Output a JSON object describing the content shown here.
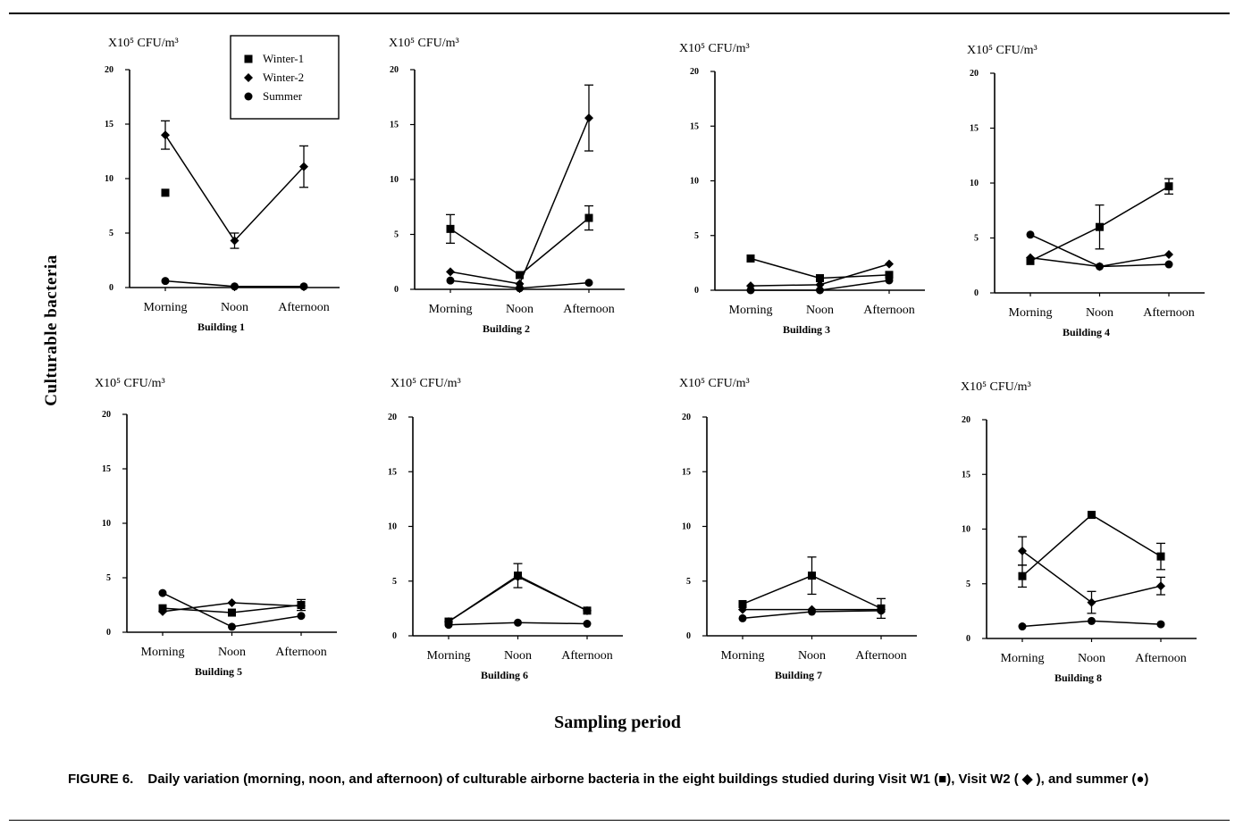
{
  "figure": {
    "y_axis_label": "Culturable bacteria",
    "x_axis_label": "Sampling period",
    "caption_label": "FIGURE 6.",
    "caption_text": "Daily variation (morning, noon, and afternoon) of culturable airborne bacteria in the eight buildings studied during Visit W1 (■), Visit W2 ( ◆ ), and summer (●)"
  },
  "legend": {
    "entries": [
      {
        "name": "Winter-1",
        "marker": "square"
      },
      {
        "name": "Winter-2",
        "marker": "diamond"
      },
      {
        "name": "Summer",
        "marker": "circle"
      }
    ]
  },
  "chart_data": [
    {
      "type": "line",
      "title": "Building 1",
      "unit_label": "X10⁵ CFU/m³",
      "categories": [
        "Morning",
        "Noon",
        "Afternoon"
      ],
      "ylim": [
        0,
        20
      ],
      "yticks": [
        0,
        5,
        10,
        15,
        20
      ],
      "series": [
        {
          "name": "Winter-1",
          "values": [
            8.7,
            null,
            null
          ]
        },
        {
          "name": "Winter-2",
          "values": [
            14.0,
            4.3,
            11.1
          ],
          "errors": [
            1.3,
            0.7,
            1.9
          ]
        },
        {
          "name": "Summer",
          "values": [
            0.6,
            0.1,
            0.1
          ]
        }
      ]
    },
    {
      "type": "line",
      "title": "Building 2",
      "unit_label": "X10⁵ CFU/m³",
      "categories": [
        "Morning",
        "Noon",
        "Afternoon"
      ],
      "ylim": [
        0,
        20
      ],
      "yticks": [
        0,
        5,
        10,
        15,
        20
      ],
      "series": [
        {
          "name": "Winter-1",
          "values": [
            5.5,
            1.3,
            6.5
          ],
          "errors": [
            1.3,
            0.0,
            1.1
          ]
        },
        {
          "name": "Winter-2",
          "values": [
            1.6,
            0.5,
            15.6
          ],
          "errors": [
            0,
            0,
            3.0
          ]
        },
        {
          "name": "Summer",
          "values": [
            0.8,
            0.1,
            0.6
          ]
        }
      ]
    },
    {
      "type": "line",
      "title": "Building 3",
      "unit_label": "X10⁵ CFU/m³",
      "categories": [
        "Morning",
        "Noon",
        "Afternoon"
      ],
      "ylim": [
        0,
        20
      ],
      "yticks": [
        0,
        5,
        10,
        15,
        20
      ],
      "series": [
        {
          "name": "Winter-1",
          "values": [
            2.9,
            1.1,
            1.4
          ]
        },
        {
          "name": "Winter-2",
          "values": [
            0.4,
            0.5,
            2.4
          ]
        },
        {
          "name": "Summer",
          "values": [
            0.0,
            0.0,
            0.9
          ]
        }
      ]
    },
    {
      "type": "line",
      "title": "Building 4",
      "unit_label": "X10⁵ CFU/m³",
      "categories": [
        "Morning",
        "Noon",
        "Afternoon"
      ],
      "ylim": [
        0,
        20
      ],
      "yticks": [
        0,
        5,
        10,
        15,
        20
      ],
      "series": [
        {
          "name": "Winter-1",
          "values": [
            2.9,
            6.0,
            9.7
          ],
          "errors": [
            0,
            2.0,
            0.7
          ]
        },
        {
          "name": "Winter-2",
          "values": [
            3.2,
            2.4,
            3.5
          ]
        },
        {
          "name": "Summer",
          "values": [
            5.3,
            2.4,
            2.6
          ]
        }
      ]
    },
    {
      "type": "line",
      "title": "Building 5",
      "unit_label": "X10⁵ CFU/m³",
      "categories": [
        "Morning",
        "Noon",
        "Afternoon"
      ],
      "ylim": [
        0,
        20
      ],
      "yticks": [
        0,
        5,
        10,
        15,
        20
      ],
      "series": [
        {
          "name": "Winter-1",
          "values": [
            2.2,
            1.8,
            2.5
          ],
          "errors": [
            0,
            0,
            0.5
          ]
        },
        {
          "name": "Winter-2",
          "values": [
            1.9,
            2.7,
            2.4
          ]
        },
        {
          "name": "Summer",
          "values": [
            3.6,
            0.5,
            1.5
          ]
        }
      ]
    },
    {
      "type": "line",
      "title": "Building 6",
      "unit_label": "X10⁵ CFU/m³",
      "categories": [
        "Morning",
        "Noon",
        "Afternoon"
      ],
      "ylim": [
        0,
        20
      ],
      "yticks": [
        0,
        5,
        10,
        15,
        20
      ],
      "series": [
        {
          "name": "Winter-1",
          "values": [
            1.3,
            5.5,
            2.3
          ],
          "errors": [
            0,
            1.1,
            0
          ]
        },
        {
          "name": "Winter-2",
          "values": [
            1.3,
            5.4,
            2.3
          ]
        },
        {
          "name": "Summer",
          "values": [
            1.0,
            1.2,
            1.1
          ]
        }
      ]
    },
    {
      "type": "line",
      "title": "Building 7",
      "unit_label": "X10⁵ CFU/m³",
      "categories": [
        "Morning",
        "Noon",
        "Afternoon"
      ],
      "ylim": [
        0,
        20
      ],
      "yticks": [
        0,
        5,
        10,
        15,
        20
      ],
      "series": [
        {
          "name": "Winter-1",
          "values": [
            2.9,
            5.5,
            2.5
          ],
          "errors": [
            0,
            1.7,
            0.9
          ]
        },
        {
          "name": "Winter-2",
          "values": [
            2.4,
            2.4,
            2.4
          ]
        },
        {
          "name": "Summer",
          "values": [
            1.6,
            2.2,
            2.3
          ]
        }
      ]
    },
    {
      "type": "line",
      "title": "Building 8",
      "unit_label": "X10⁵ CFU/m³",
      "categories": [
        "Morning",
        "Noon",
        "Afternoon"
      ],
      "ylim": [
        0,
        20
      ],
      "yticks": [
        0,
        5,
        10,
        15,
        20
      ],
      "series": [
        {
          "name": "Winter-1",
          "values": [
            5.7,
            11.3,
            7.5
          ],
          "errors": [
            1.0,
            0,
            1.2
          ]
        },
        {
          "name": "Winter-2",
          "values": [
            8.0,
            3.3,
            4.8
          ],
          "errors": [
            1.3,
            1.0,
            0.8
          ]
        },
        {
          "name": "Summer",
          "values": [
            1.1,
            1.6,
            1.3
          ]
        }
      ]
    }
  ]
}
